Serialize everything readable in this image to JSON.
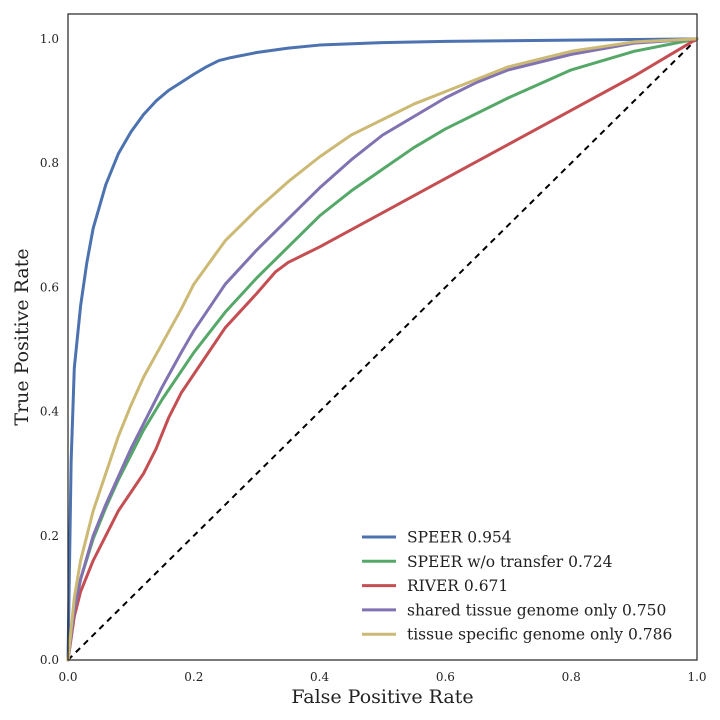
{
  "chart_data": {
    "type": "line",
    "title": "",
    "xlabel": "False Positive Rate",
    "ylabel": "True Positive Rate",
    "xlim": [
      0.0,
      1.0
    ],
    "ylim": [
      0.0,
      1.04
    ],
    "x_ticks": [
      "0.0",
      "0.2",
      "0.4",
      "0.6",
      "0.8",
      "1.0"
    ],
    "y_ticks": [
      "0.0",
      "0.2",
      "0.4",
      "0.6",
      "0.8",
      "1.0"
    ],
    "grid": false,
    "legend_position": "lower-right",
    "series": [
      {
        "name": "SPEER 0.954",
        "color": "#4c72b0",
        "x": [
          0,
          0.005,
          0.01,
          0.02,
          0.03,
          0.04,
          0.05,
          0.06,
          0.08,
          0.1,
          0.12,
          0.14,
          0.16,
          0.18,
          0.2,
          0.22,
          0.24,
          0.26,
          0.3,
          0.35,
          0.4,
          0.5,
          0.6,
          0.7,
          0.8,
          0.9,
          1.0
        ],
        "y": [
          0,
          0.32,
          0.47,
          0.57,
          0.64,
          0.695,
          0.73,
          0.765,
          0.815,
          0.85,
          0.878,
          0.9,
          0.917,
          0.93,
          0.943,
          0.955,
          0.965,
          0.97,
          0.978,
          0.985,
          0.99,
          0.994,
          0.996,
          0.997,
          0.998,
          0.999,
          1.0
        ]
      },
      {
        "name": "SPEER w/o transfer 0.724",
        "color": "#55a868",
        "x": [
          0,
          0.01,
          0.02,
          0.04,
          0.06,
          0.08,
          0.1,
          0.12,
          0.15,
          0.18,
          0.2,
          0.25,
          0.3,
          0.35,
          0.4,
          0.45,
          0.5,
          0.55,
          0.6,
          0.7,
          0.8,
          0.9,
          1.0
        ],
        "y": [
          0,
          0.08,
          0.13,
          0.195,
          0.245,
          0.29,
          0.33,
          0.37,
          0.42,
          0.465,
          0.495,
          0.56,
          0.615,
          0.665,
          0.715,
          0.755,
          0.79,
          0.825,
          0.855,
          0.905,
          0.95,
          0.98,
          1.0
        ]
      },
      {
        "name": "RIVER 0.671",
        "color": "#c44e52",
        "x": [
          0,
          0.01,
          0.02,
          0.04,
          0.06,
          0.08,
          0.1,
          0.12,
          0.14,
          0.16,
          0.18,
          0.2,
          0.25,
          0.3,
          0.33,
          0.35,
          0.38,
          0.4,
          0.5,
          0.6,
          0.7,
          0.8,
          0.9,
          1.0
        ],
        "y": [
          0,
          0.07,
          0.11,
          0.16,
          0.2,
          0.24,
          0.27,
          0.3,
          0.34,
          0.39,
          0.43,
          0.46,
          0.535,
          0.59,
          0.625,
          0.64,
          0.655,
          0.665,
          0.72,
          0.775,
          0.83,
          0.885,
          0.94,
          1.0
        ]
      },
      {
        "name": "shared tissue genome only 0.750",
        "color": "#8172b2",
        "x": [
          0,
          0.01,
          0.02,
          0.04,
          0.06,
          0.08,
          0.1,
          0.12,
          0.15,
          0.18,
          0.2,
          0.25,
          0.3,
          0.35,
          0.4,
          0.45,
          0.5,
          0.55,
          0.6,
          0.65,
          0.7,
          0.8,
          0.9,
          1.0
        ],
        "y": [
          0,
          0.08,
          0.13,
          0.2,
          0.25,
          0.295,
          0.34,
          0.38,
          0.44,
          0.495,
          0.53,
          0.605,
          0.66,
          0.71,
          0.76,
          0.805,
          0.845,
          0.875,
          0.905,
          0.93,
          0.95,
          0.975,
          0.993,
          1.0
        ]
      },
      {
        "name": "tissue specific genome only 0.786",
        "color": "#ccb974",
        "x": [
          0,
          0.01,
          0.02,
          0.04,
          0.06,
          0.08,
          0.1,
          0.12,
          0.15,
          0.18,
          0.2,
          0.25,
          0.3,
          0.35,
          0.4,
          0.45,
          0.5,
          0.55,
          0.6,
          0.65,
          0.7,
          0.8,
          0.9,
          1.0
        ],
        "y": [
          0,
          0.1,
          0.16,
          0.24,
          0.3,
          0.36,
          0.41,
          0.455,
          0.51,
          0.565,
          0.605,
          0.675,
          0.725,
          0.77,
          0.81,
          0.845,
          0.87,
          0.895,
          0.915,
          0.935,
          0.955,
          0.98,
          0.995,
          1.0
        ]
      }
    ],
    "reference_line": {
      "color": "#000000",
      "style": "dashed",
      "x": [
        0,
        1
      ],
      "y": [
        0,
        1
      ]
    }
  }
}
